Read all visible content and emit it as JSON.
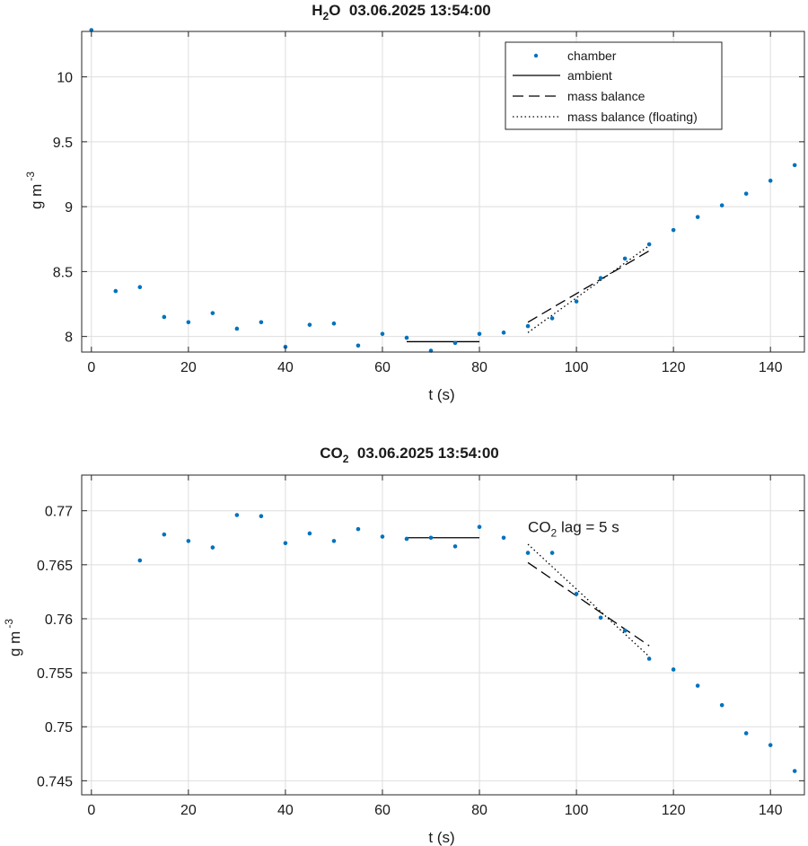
{
  "chart_data": [
    {
      "type": "scatter",
      "title_main": "H",
      "title_sub": "2",
      "title_rest": "O  03.06.2025 13:54:00",
      "xlabel": "t (s)",
      "ylabel_main": "g m",
      "ylabel_sup": "-3",
      "xlim": [
        -2,
        147
      ],
      "ylim": [
        7.88,
        10.35
      ],
      "xticks": [
        0,
        20,
        40,
        60,
        80,
        100,
        120,
        140
      ],
      "yticks": [
        8,
        8.5,
        9,
        9.5,
        10
      ],
      "ytick_labels": [
        "8",
        "8.5",
        "9",
        "9.5",
        "10"
      ],
      "grid": true,
      "legend_position": "top-right",
      "legend": {
        "chamber": "chamber",
        "ambient": "ambient",
        "mass_balance": "mass balance",
        "mass_balance_floating": "mass balance (floating)"
      },
      "series": [
        {
          "name": "chamber",
          "x": [
            0,
            5,
            10,
            15,
            20,
            25,
            30,
            35,
            40,
            45,
            50,
            55,
            60,
            65,
            70,
            75,
            80,
            85,
            90,
            95,
            100,
            105,
            110,
            115,
            120,
            125,
            130,
            135,
            140,
            145
          ],
          "y": [
            10.36,
            8.35,
            8.38,
            8.15,
            8.11,
            8.18,
            8.06,
            8.11,
            7.92,
            8.09,
            8.1,
            7.93,
            8.02,
            7.99,
            7.89,
            7.95,
            8.02,
            8.03,
            8.08,
            8.14,
            8.27,
            8.45,
            8.6,
            8.71,
            8.82,
            8.92,
            9.01,
            9.1,
            9.2,
            9.32
          ],
          "color": "#0072BD"
        },
        {
          "name": "ambient",
          "x": [
            65,
            80
          ],
          "y": [
            7.96,
            7.96
          ],
          "color": "#000000"
        },
        {
          "name": "mass balance",
          "x": [
            90,
            115
          ],
          "y": [
            8.11,
            8.66
          ],
          "color": "#000000"
        },
        {
          "name": "mass balance (floating)",
          "x": [
            90,
            115
          ],
          "y": [
            8.03,
            8.7
          ],
          "color": "#000000"
        }
      ]
    },
    {
      "type": "scatter",
      "title_main": "CO",
      "title_sub": "2",
      "title_rest": "  03.06.2025 13:54:00",
      "xlabel": "t (s)",
      "ylabel_main": "g m",
      "ylabel_sup": "-3",
      "xlim": [
        -2,
        147
      ],
      "ylim": [
        0.7437,
        0.7733
      ],
      "xticks": [
        0,
        20,
        40,
        60,
        80,
        100,
        120,
        140
      ],
      "yticks": [
        0.745,
        0.75,
        0.755,
        0.76,
        0.765,
        0.77
      ],
      "ytick_labels": [
        "0.745",
        "0.75",
        "0.755",
        "0.76",
        "0.765",
        "0.77"
      ],
      "grid": true,
      "annotation": {
        "main": "CO",
        "sub": "2",
        "rest": " lag = 5 s",
        "x": 90,
        "y": 0.7685
      },
      "series": [
        {
          "name": "chamber",
          "x": [
            10,
            15,
            20,
            25,
            30,
            35,
            40,
            45,
            50,
            55,
            60,
            65,
            70,
            75,
            80,
            85,
            90,
            95,
            100,
            105,
            110,
            115,
            120,
            125,
            130,
            135,
            140,
            145
          ],
          "y": [
            0.7654,
            0.7678,
            0.7672,
            0.7666,
            0.7696,
            0.7695,
            0.767,
            0.7679,
            0.7672,
            0.7683,
            0.7676,
            0.7674,
            0.7675,
            0.7667,
            0.7685,
            0.7675,
            0.7661,
            0.7661,
            0.7623,
            0.7601,
            0.7589,
            0.7563,
            0.7553,
            0.7538,
            0.752,
            0.7494,
            0.7483,
            0.7459
          ],
          "color": "#0072BD"
        },
        {
          "name": "ambient",
          "x": [
            65,
            80
          ],
          "y": [
            0.7675,
            0.7675
          ],
          "color": "#000000"
        },
        {
          "name": "mass balance",
          "x": [
            90,
            115
          ],
          "y": [
            0.7652,
            0.7575
          ],
          "color": "#000000"
        },
        {
          "name": "mass balance (floating)",
          "x": [
            90,
            115
          ],
          "y": [
            0.7669,
            0.7565
          ],
          "color": "#000000"
        }
      ]
    }
  ]
}
